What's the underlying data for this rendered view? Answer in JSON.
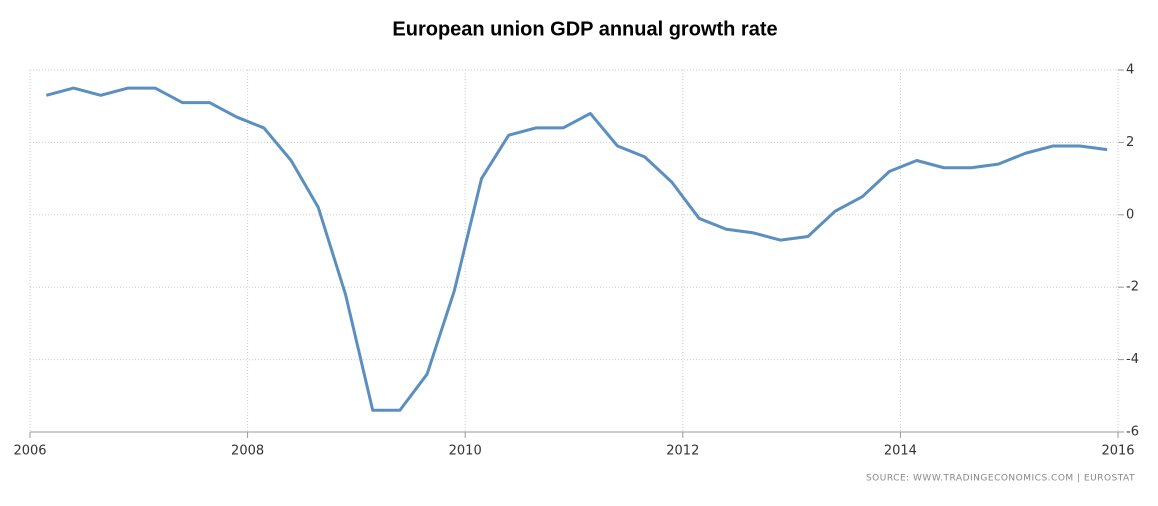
{
  "chart_data": {
    "type": "line",
    "title": "European union GDP annual growth rate",
    "source": "SOURCE: WWW.TRADINGECONOMICS.COM | EUROSTAT",
    "x": [
      2006.15,
      2006.4,
      2006.65,
      2006.9,
      2007.15,
      2007.4,
      2007.65,
      2007.9,
      2008.15,
      2008.4,
      2008.65,
      2008.9,
      2009.15,
      2009.4,
      2009.65,
      2009.9,
      2010.15,
      2010.4,
      2010.65,
      2010.9,
      2011.15,
      2011.4,
      2011.65,
      2011.9,
      2012.15,
      2012.4,
      2012.65,
      2012.9,
      2013.15,
      2013.4,
      2013.65,
      2013.9,
      2014.15,
      2014.4,
      2014.65,
      2014.9,
      2015.15,
      2015.4,
      2015.65,
      2015.9
    ],
    "series": [
      {
        "name": "GDP annual growth rate",
        "color": "#5b8fc0",
        "values": [
          3.3,
          3.5,
          3.3,
          3.5,
          3.5,
          3.1,
          3.1,
          2.7,
          2.4,
          1.5,
          0.2,
          -2.2,
          -5.4,
          -5.4,
          -4.4,
          -2.1,
          1.0,
          2.2,
          2.4,
          2.4,
          2.8,
          1.9,
          1.6,
          0.9,
          -0.1,
          -0.4,
          -0.5,
          -0.7,
          -0.6,
          0.1,
          0.5,
          1.2,
          1.5,
          1.3,
          1.3,
          1.4,
          1.7,
          1.9,
          1.9,
          1.8
        ]
      }
    ],
    "xlim": [
      2006,
      2016
    ],
    "xticks": [
      2006,
      2008,
      2010,
      2012,
      2014,
      2016
    ],
    "ylim": [
      -6,
      4
    ],
    "yticks": [
      -6,
      -4,
      -2,
      0,
      2,
      4
    ],
    "grid": true
  }
}
